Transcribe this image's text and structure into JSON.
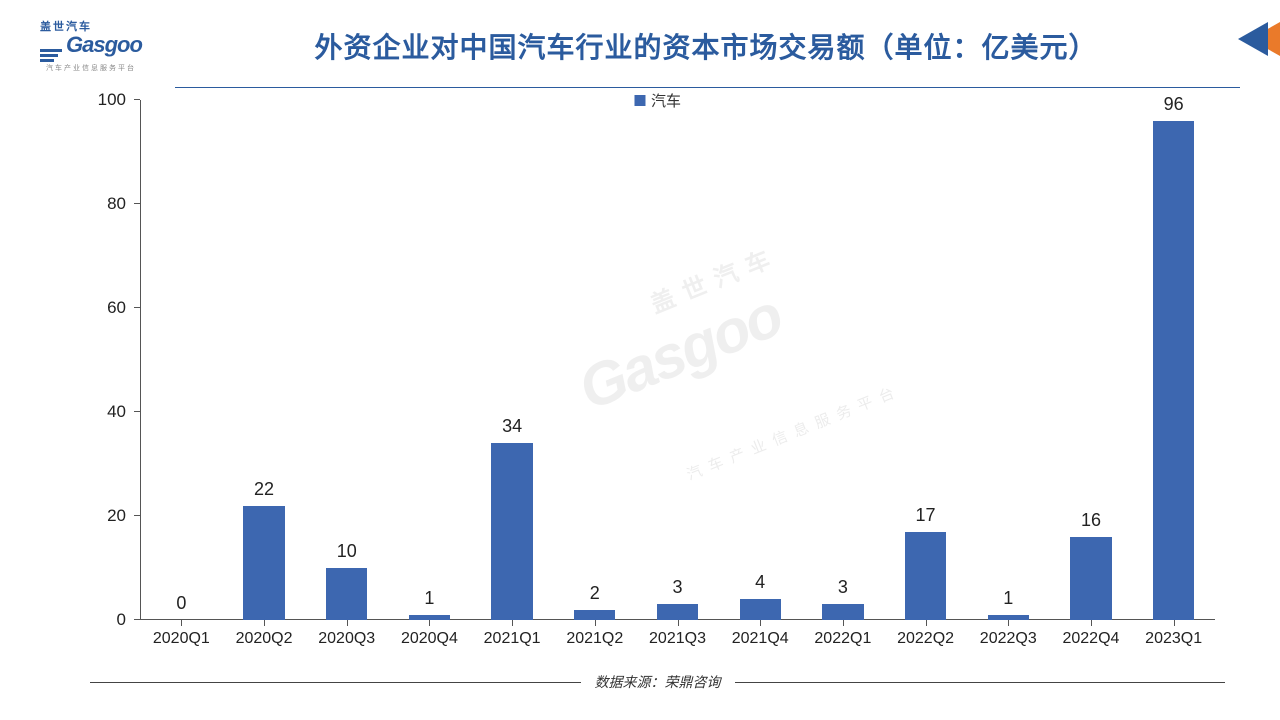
{
  "logo": {
    "cn": "盖世汽车",
    "en": "Gasgoo",
    "sub": "汽车产业信息服务平台"
  },
  "title": "外资企业对中国汽车行业的资本市场交易额（单位：亿美元）",
  "corner": {
    "orange": "#ea7a2a",
    "blue": "#2b5b9e"
  },
  "chart": {
    "type": "bar",
    "legend_label": "汽车",
    "bar_color": "#3d67b0",
    "categories": [
      "2020Q1",
      "2020Q2",
      "2020Q3",
      "2020Q4",
      "2021Q1",
      "2021Q2",
      "2021Q3",
      "2021Q4",
      "2022Q1",
      "2022Q2",
      "2022Q3",
      "2022Q4",
      "2023Q1"
    ],
    "values": [
      0,
      22,
      10,
      1,
      34,
      2,
      3,
      4,
      3,
      17,
      1,
      16,
      96
    ],
    "ylim": [
      0,
      100
    ],
    "ytick_step": 20,
    "bar_width_ratio": 0.5,
    "axis_color": "#555555",
    "label_fontsize": 17,
    "background": "#ffffff"
  },
  "watermark": {
    "cn": "盖世汽车",
    "en": "Gasgoo",
    "sub": "汽车产业信息服务平台"
  },
  "footer": "数据来源：荣鼎咨询"
}
